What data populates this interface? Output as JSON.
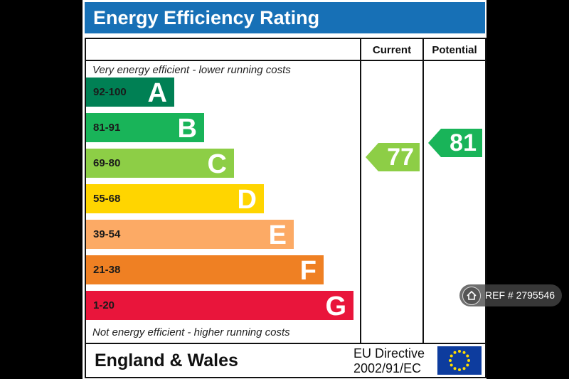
{
  "title": "Energy Efficiency Rating",
  "columns": {
    "current": "Current",
    "potential": "Potential"
  },
  "caption_top": "Very energy efficient - lower running costs",
  "caption_bottom": "Not energy efficient - higher running costs",
  "bands": [
    {
      "range": "92-100",
      "letter": "A",
      "color": "#008054"
    },
    {
      "range": "81-91",
      "letter": "B",
      "color": "#19b459"
    },
    {
      "range": "69-80",
      "letter": "C",
      "color": "#8dce46"
    },
    {
      "range": "55-68",
      "letter": "D",
      "color": "#ffd500"
    },
    {
      "range": "39-54",
      "letter": "E",
      "color": "#fcaa65"
    },
    {
      "range": "21-38",
      "letter": "F",
      "color": "#ef8023"
    },
    {
      "range": "1-20",
      "letter": "G",
      "color": "#e9153b"
    }
  ],
  "current_rating": {
    "value": "77",
    "color": "#8dce46"
  },
  "potential_rating": {
    "value": "81",
    "color": "#19b459"
  },
  "footer": {
    "region": "England & Wales",
    "directive_line1": "EU Directive",
    "directive_line2": "2002/91/EC"
  },
  "reference": "REF # 2795546"
}
